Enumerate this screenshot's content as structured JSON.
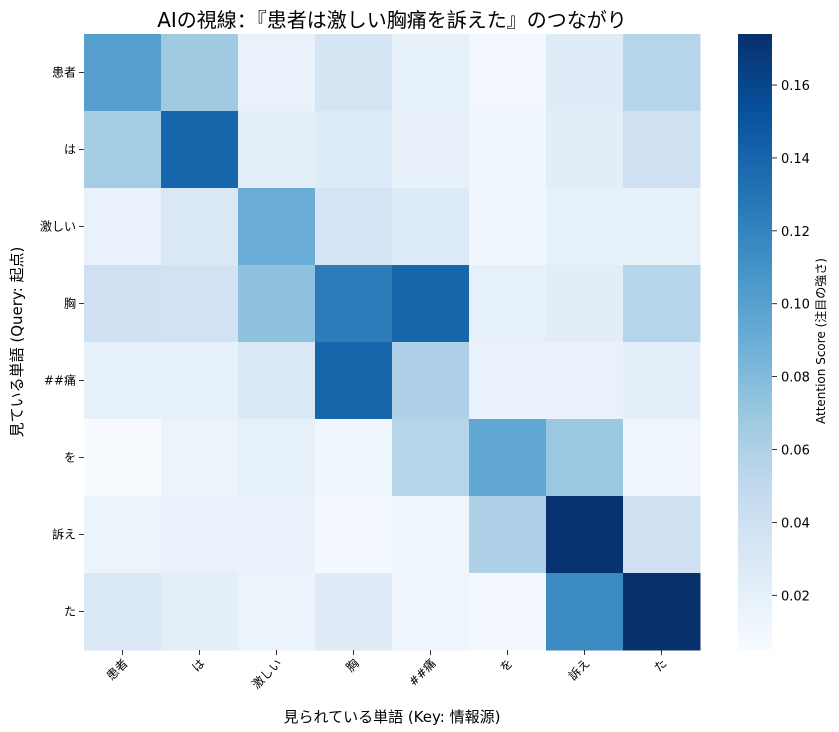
{
  "chart_data": {
    "type": "heatmap",
    "title": "AIの視線：『患者は激しい胸痛を訴えた』のつながり",
    "xlabel": "見られている単語 (Key: 情報源)",
    "ylabel": "見ている単語 (Query: 起点)",
    "x_categories": [
      "患者",
      "は",
      "激しい",
      "胸",
      "##痛",
      "を",
      "訴え",
      "た"
    ],
    "y_categories": [
      "患者",
      "は",
      "激しい",
      "胸",
      "##痛",
      "を",
      "訴え",
      "た"
    ],
    "values": [
      [
        0.1,
        0.068,
        0.017,
        0.034,
        0.02,
        0.01,
        0.025,
        0.055
      ],
      [
        0.065,
        0.14,
        0.022,
        0.027,
        0.018,
        0.012,
        0.023,
        0.04
      ],
      [
        0.017,
        0.03,
        0.09,
        0.035,
        0.027,
        0.012,
        0.02,
        0.02
      ],
      [
        0.04,
        0.038,
        0.075,
        0.125,
        0.14,
        0.02,
        0.023,
        0.055
      ],
      [
        0.02,
        0.02,
        0.03,
        0.14,
        0.06,
        0.017,
        0.017,
        0.022
      ],
      [
        0.005,
        0.015,
        0.02,
        0.012,
        0.055,
        0.095,
        0.07,
        0.012
      ],
      [
        0.015,
        0.017,
        0.016,
        0.008,
        0.012,
        0.06,
        0.172,
        0.04
      ],
      [
        0.03,
        0.022,
        0.015,
        0.025,
        0.013,
        0.008,
        0.115,
        0.174
      ]
    ],
    "colormap": "Blues",
    "vmin": 0.005,
    "vmax": 0.174,
    "colorbar": {
      "label": "Attention Score (注目の強さ)",
      "ticks": [
        0.02,
        0.04,
        0.06,
        0.08,
        0.1,
        0.12,
        0.14,
        0.16
      ],
      "tick_labels": [
        "0.02",
        "0.04",
        "0.06",
        "0.08",
        "0.10",
        "0.12",
        "0.14",
        "0.16"
      ]
    }
  }
}
